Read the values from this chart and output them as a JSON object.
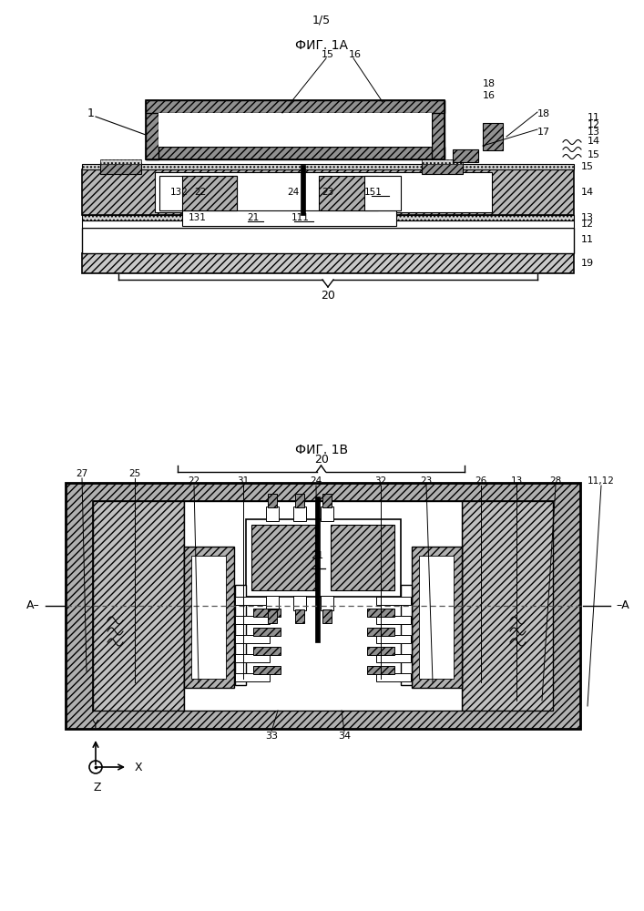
{
  "page_label": "1/5",
  "fig1a_title": "ФИГ. 1А",
  "fig1b_title": "ФИГ. 1В",
  "bg_color": "#ffffff",
  "black": "#000000",
  "white": "#ffffff",
  "hatch_gray": "#909090",
  "mid_gray": "#b0b0b0",
  "light_gray": "#d8d8d8",
  "dark_gray": "#606060"
}
